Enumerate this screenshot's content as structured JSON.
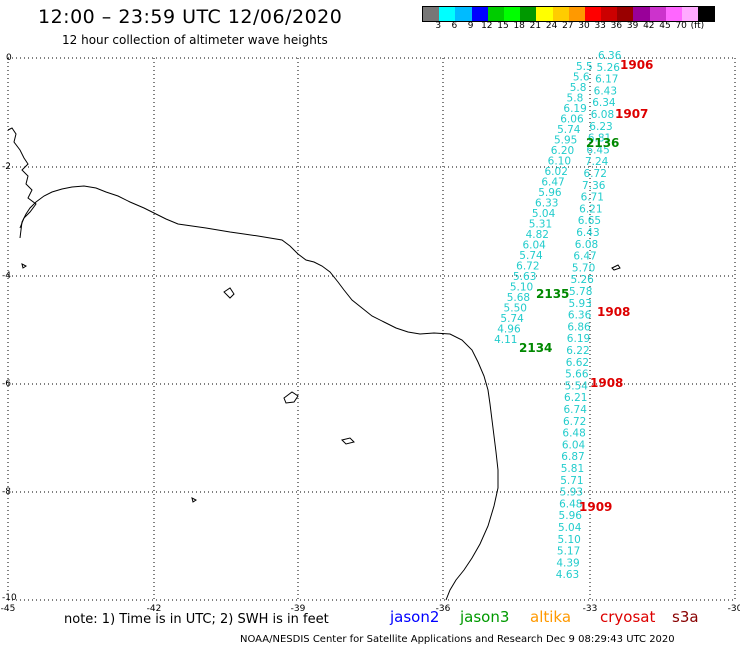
{
  "title": "12:00 – 23:59 UTC 12/06/2020",
  "subtitle": "12 hour collection of altimeter wave heights",
  "colorbar": {
    "colors": [
      "#777777",
      "#00ffff",
      "#00bbff",
      "#0000ff",
      "#00cc00",
      "#00ff00",
      "#009900",
      "#ffff00",
      "#ffcc00",
      "#ff9900",
      "#ff0000",
      "#cc0000",
      "#990000",
      "#990099",
      "#cc33cc",
      "#ff66ff",
      "#ffaaff",
      "#000000"
    ],
    "ticks": [
      "3",
      "6",
      "9",
      "12",
      "15",
      "18",
      "21",
      "24",
      "27",
      "30",
      "33",
      "36",
      "39",
      "42",
      "45",
      "70",
      "(ft)"
    ]
  },
  "axes": {
    "x_ticks": [
      "-45",
      "-42",
      "-39",
      "-36",
      "-33",
      "-30"
    ],
    "y_ticks": [
      "0",
      "-2",
      "-4",
      "-6",
      "-8",
      "-10"
    ]
  },
  "track_values": {
    "right": [
      "6.36",
      "5.26",
      "6.17",
      "6.43",
      "6.34",
      "6.08",
      "6.23",
      "6.81",
      "6.45",
      "7.24",
      "6.72",
      "7.36",
      "6.71",
      "6.21",
      "6.65",
      "6.43",
      "6.08",
      "6.47",
      "5.70",
      "5.26",
      "5.78",
      "5.93",
      "6.36",
      "6.86",
      "6.19",
      "6.22",
      "6.62",
      "5.66",
      "5.54",
      "6.21",
      "6.74",
      "6.72",
      "6.48",
      "6.04",
      "6.87",
      "5.81",
      "5.71",
      "5.93",
      "6.48",
      "5.96",
      "5.04",
      "5.10",
      "5.17",
      "4.39",
      "4.63"
    ],
    "left": [
      "5.5",
      "5.6",
      "5.8",
      "5.8",
      "6.19",
      "6.06",
      "5.74",
      "5.95",
      "6.20",
      "6.10",
      "6.02",
      "6.47",
      "5.96",
      "6.33",
      "5.04",
      "5.31",
      "4.82",
      "6.04",
      "5.74",
      "6.72",
      "5.63",
      "5.10",
      "5.68",
      "5.50",
      "5.74",
      "4.96",
      "4.11"
    ]
  },
  "time_labels": [
    {
      "text": "1906",
      "color": "#dd0000"
    },
    {
      "text": "1907",
      "color": "#dd0000"
    },
    {
      "text": "2136",
      "color": "#008800"
    },
    {
      "text": "2135",
      "color": "#008800"
    },
    {
      "text": "1908",
      "color": "#dd0000"
    },
    {
      "text": "2134",
      "color": "#008800"
    },
    {
      "text": "1908",
      "color": "#dd0000"
    },
    {
      "text": "1909",
      "color": "#dd0000"
    }
  ],
  "note": "note:  1) Time is in UTC;  2) SWH is in feet",
  "legend": [
    {
      "label": "jason2",
      "color": "#0000ff"
    },
    {
      "label": "jason3",
      "color": "#009900"
    },
    {
      "label": "altika",
      "color": "#ff9900"
    },
    {
      "label": "cryosat",
      "color": "#dd0000"
    },
    {
      "label": "s3a",
      "color": "#880000"
    }
  ],
  "footer": "NOAA/NESDIS Center for Satellite Applications and Research    Dec  9 08:29:43 UTC 2020"
}
